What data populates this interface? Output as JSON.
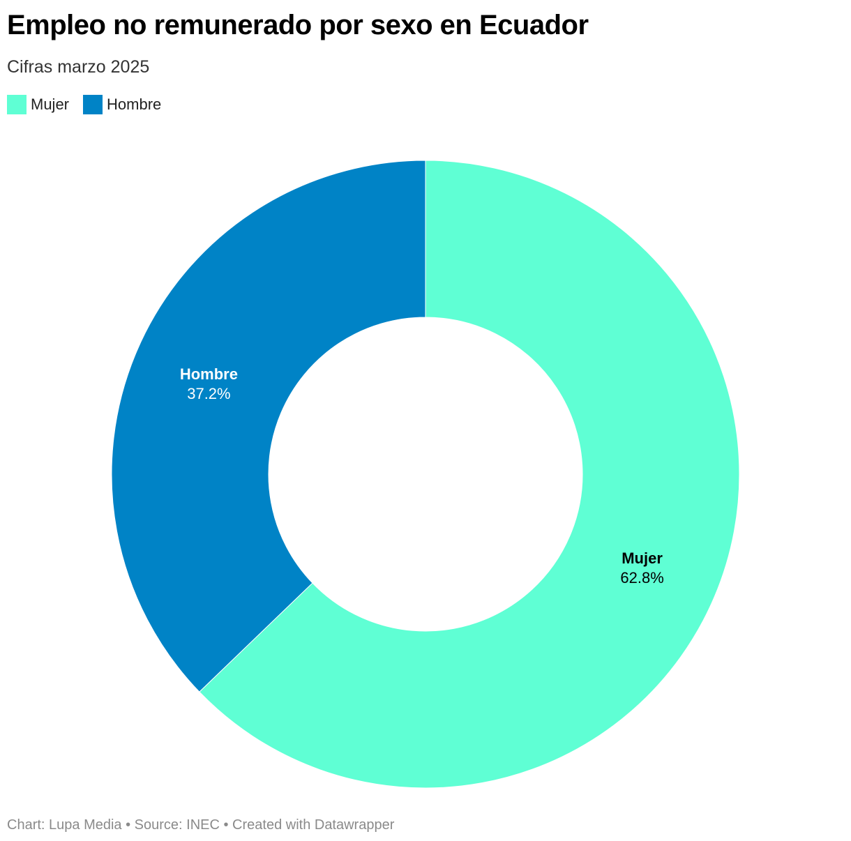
{
  "header": {
    "title": "Empleo no remunerado por sexo en Ecuador",
    "subtitle": "Cifras marzo 2025"
  },
  "legend": [
    {
      "label": "Mujer",
      "color": "#5fffd4"
    },
    {
      "label": "Hombre",
      "color": "#0083c6"
    }
  ],
  "chart_data": {
    "type": "pie",
    "variant": "donut",
    "slices": [
      {
        "label": "Mujer",
        "value": 62.8,
        "display": "62.8%",
        "color": "#5fffd4",
        "label_color": "#000000"
      },
      {
        "label": "Hombre",
        "value": 37.2,
        "display": "37.2%",
        "color": "#0083c6",
        "label_color": "#ffffff"
      }
    ],
    "legend_position": "top-left"
  },
  "footer": {
    "text": "Chart: Lupa Media • Source: INEC • Created with Datawrapper"
  }
}
